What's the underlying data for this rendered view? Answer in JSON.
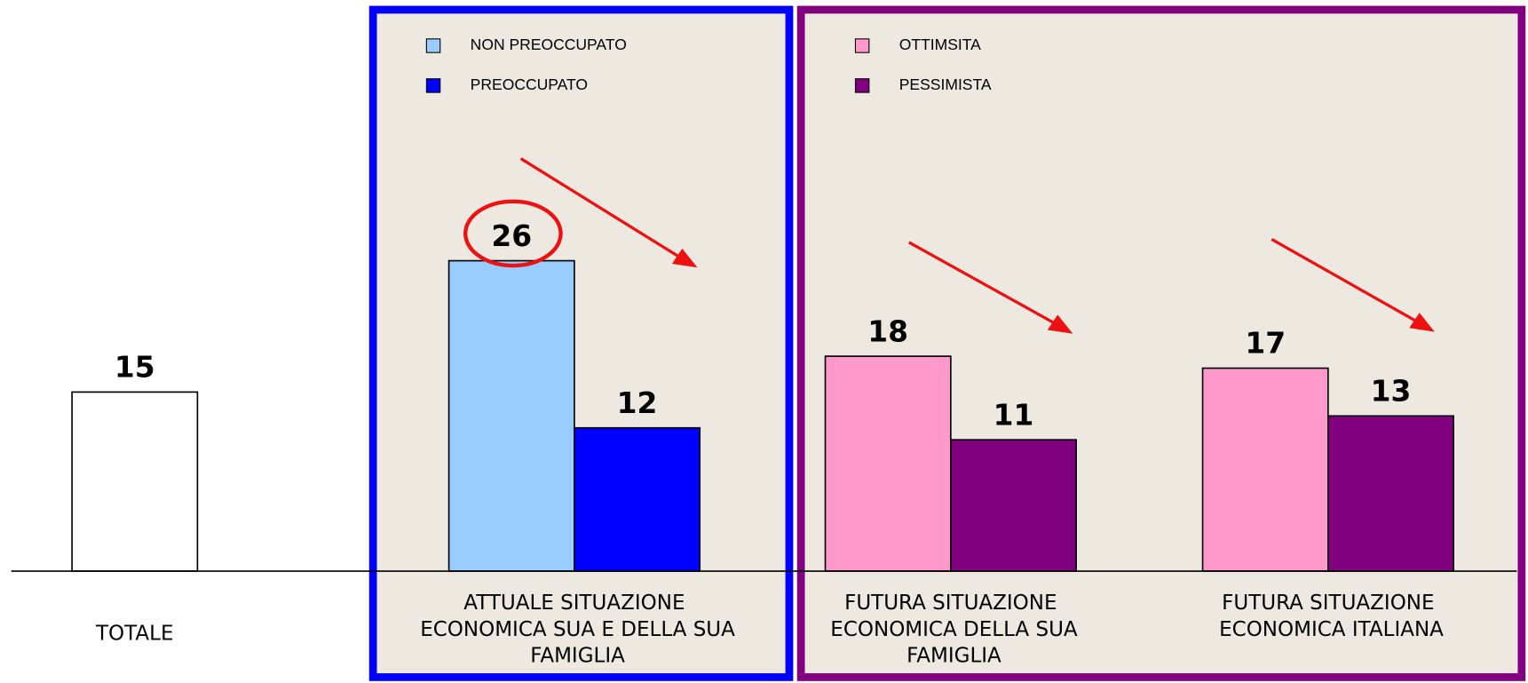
{
  "chart_data": {
    "type": "bar",
    "categories": [
      "TOTALE",
      "ATTUALE SITUAZIONE ECONOMICA SUA E DELLA SUA FAMIGLIA",
      "FUTURA SITUAZIONE ECONOMICA DELLA SUA FAMIGLIA",
      "FUTURA SITUAZIONE ECONOMICA ITALIANA"
    ],
    "values": [
      15,
      null,
      null,
      null
    ],
    "color": "#ffffff",
    "series": [
      {
        "name": "NON PREOCCUPATO",
        "color": "#99ccff",
        "values": [
          null,
          26,
          null,
          null
        ]
      },
      {
        "name": "PREOCCUPATO",
        "color": "#0000ff",
        "values": [
          null,
          12,
          null,
          null
        ]
      },
      {
        "name": "OTTIMSITA",
        "color": "#ff99cc",
        "values": [
          null,
          null,
          18,
          17
        ]
      },
      {
        "name": "PESSIMISTA",
        "color": "#800080",
        "values": [
          null,
          null,
          11,
          13
        ]
      }
    ],
    "ylim": [
      0,
      46
    ]
  }
}
